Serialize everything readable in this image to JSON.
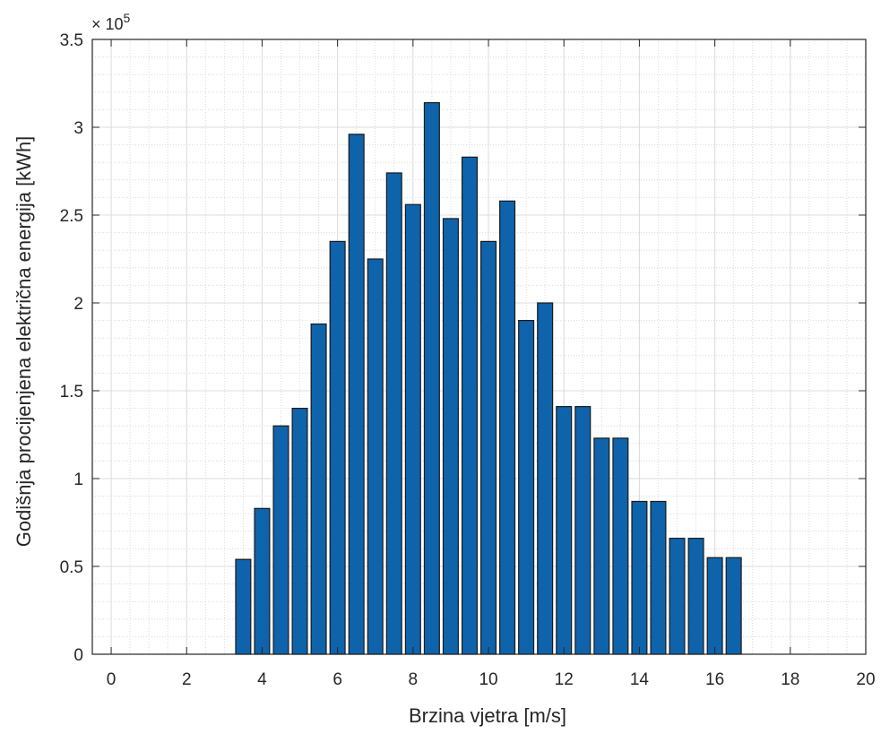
{
  "chart_data": {
    "type": "bar",
    "xlabel": "Brzina vjetra [m/s]",
    "ylabel": "Godišnja procijenjena električna energija [kWh]",
    "xlim": [
      -0.5,
      20
    ],
    "ylim": [
      0,
      350000
    ],
    "x_ticks": [
      "0",
      "2",
      "4",
      "6",
      "8",
      "10",
      "12",
      "14",
      "16",
      "18",
      "20"
    ],
    "y_ticks": [
      "0",
      "0.5",
      "1",
      "1.5",
      "2",
      "2.5",
      "3",
      "3.5"
    ],
    "y_multiplier": {
      "base": "× 10",
      "exponent": "5"
    },
    "grid": "major and minor",
    "bar_color": "#0e63ab",
    "bar_edge_color": "#1a1a1a",
    "x": [
      3.5,
      4.0,
      4.5,
      5.0,
      5.5,
      6.0,
      6.5,
      7.0,
      7.5,
      8.0,
      8.5,
      9.0,
      9.5,
      10.0,
      10.5,
      11.0,
      11.5,
      12.0,
      12.5,
      13.0,
      13.5,
      14.0,
      14.5,
      15.0,
      15.5,
      16.0,
      16.5
    ],
    "values": [
      54000,
      83000,
      130000,
      140000,
      188000,
      235000,
      296000,
      225000,
      274000,
      256000,
      314000,
      248000,
      283000,
      235000,
      258000,
      190000,
      200000,
      141000,
      141000,
      123000,
      123000,
      87000,
      87000,
      66000,
      66000,
      55000,
      55000
    ]
  }
}
